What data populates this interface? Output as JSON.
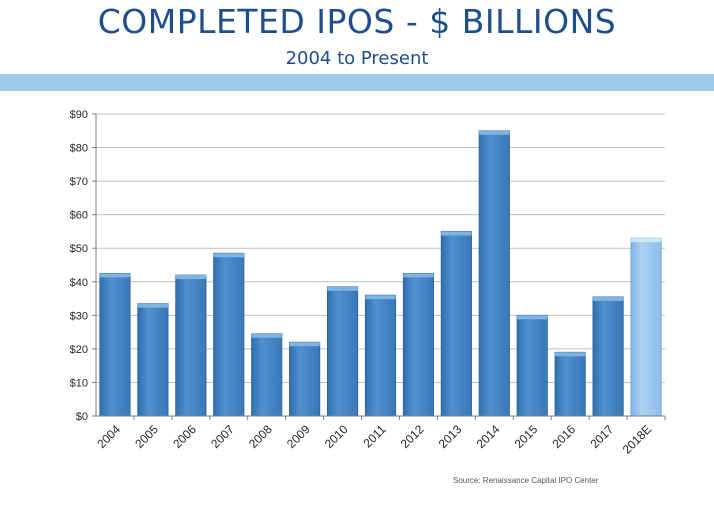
{
  "header": {
    "title": "COMPLETED IPOS - $ BILLIONS",
    "subtitle": "2004 to Present"
  },
  "footer": {
    "source": "Source:  Renaissance Capital  IPO Center"
  },
  "colors": {
    "bar": "#4b8ccc",
    "bar_estimate": "#9cc7ec",
    "title": "#1f4e8c",
    "band": "#9fcaea"
  },
  "chart_data": {
    "type": "bar",
    "title": "",
    "xlabel": "",
    "ylabel": "",
    "categories": [
      "2004",
      "2005",
      "2006",
      "2007",
      "2008",
      "2009",
      "2010",
      "2011",
      "2012",
      "2013",
      "2014",
      "2015",
      "2016",
      "2017",
      "2018E"
    ],
    "values": [
      42.5,
      33.5,
      42,
      48.5,
      24.5,
      22,
      38.5,
      36,
      42.5,
      55,
      85,
      30,
      19,
      35.5,
      53
    ],
    "estimate_categories": [
      "2018E"
    ],
    "ylim": [
      0,
      90
    ],
    "yticks": [
      0,
      10,
      20,
      30,
      40,
      50,
      60,
      70,
      80,
      90
    ],
    "ytick_labels": [
      "$0",
      "$10",
      "$20",
      "$30",
      "$40",
      "$50",
      "$60",
      "$70",
      "$80",
      "$90"
    ],
    "grid": true,
    "legend": "none"
  }
}
